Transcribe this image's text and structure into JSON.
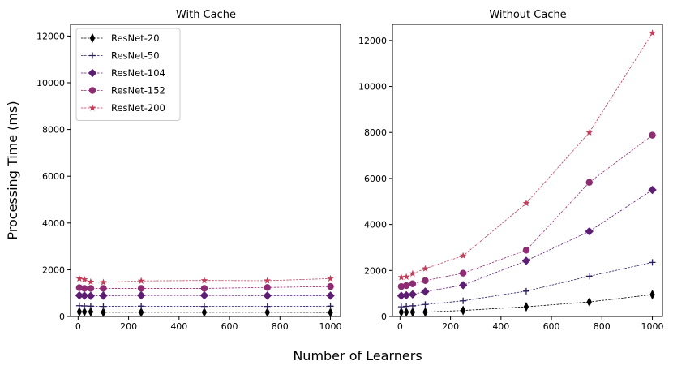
{
  "figure": {
    "ylabel": "Processing Time (ms)",
    "xlabel": "Number of Learners"
  },
  "chart_data": [
    {
      "type": "line",
      "title": "With Cache",
      "xlim": [
        -30,
        1040
      ],
      "ylim": [
        0,
        12500
      ],
      "xticks": [
        0,
        200,
        400,
        600,
        800,
        1000
      ],
      "yticks": [
        0,
        2000,
        4000,
        6000,
        8000,
        10000,
        12000
      ],
      "grid": false,
      "legend": "top-left",
      "x": [
        5,
        25,
        50,
        100,
        250,
        500,
        750,
        1000
      ],
      "series": [
        {
          "name": "ResNet-20",
          "color": "#000000",
          "marker": "thin_diamond",
          "values": [
            200,
            200,
            200,
            180,
            180,
            180,
            180,
            170
          ]
        },
        {
          "name": "ResNet-50",
          "color": "#2a1d5c",
          "marker": "plus",
          "values": [
            460,
            450,
            440,
            430,
            440,
            430,
            430,
            440
          ]
        },
        {
          "name": "ResNet-104",
          "color": "#5c1d73",
          "marker": "diamond",
          "values": [
            900,
            890,
            880,
            890,
            900,
            900,
            890,
            890
          ]
        },
        {
          "name": "ResNet-152",
          "color": "#8f2b73",
          "marker": "circle",
          "values": [
            1230,
            1200,
            1200,
            1200,
            1200,
            1200,
            1240,
            1280
          ]
        },
        {
          "name": "ResNet-200",
          "color": "#c23d5a",
          "marker": "star",
          "values": [
            1620,
            1580,
            1480,
            1460,
            1520,
            1540,
            1530,
            1620
          ]
        }
      ]
    },
    {
      "type": "line",
      "title": "Without Cache",
      "xlim": [
        -30,
        1040
      ],
      "ylim": [
        0,
        12700
      ],
      "xticks": [
        0,
        200,
        400,
        600,
        800,
        1000
      ],
      "yticks": [
        0,
        2000,
        4000,
        6000,
        8000,
        10000,
        12000
      ],
      "grid": false,
      "x": [
        5,
        25,
        50,
        100,
        250,
        500,
        750,
        1000
      ],
      "series": [
        {
          "name": "ResNet-20",
          "color": "#000000",
          "marker": "thin_diamond",
          "values": [
            190,
            190,
            190,
            190,
            260,
            420,
            630,
            950
          ]
        },
        {
          "name": "ResNet-50",
          "color": "#2a1d5c",
          "marker": "plus",
          "values": [
            420,
            440,
            460,
            520,
            680,
            1100,
            1750,
            2350
          ]
        },
        {
          "name": "ResNet-104",
          "color": "#5c1d73",
          "marker": "diamond",
          "values": [
            900,
            920,
            960,
            1080,
            1360,
            2420,
            3700,
            5500
          ]
        },
        {
          "name": "ResNet-152",
          "color": "#8f2b73",
          "marker": "circle",
          "values": [
            1300,
            1340,
            1420,
            1560,
            1880,
            2880,
            5830,
            7880
          ]
        },
        {
          "name": "ResNet-200",
          "color": "#c23d5a",
          "marker": "star",
          "values": [
            1700,
            1720,
            1860,
            2080,
            2640,
            4920,
            8000,
            12320
          ]
        }
      ]
    }
  ]
}
